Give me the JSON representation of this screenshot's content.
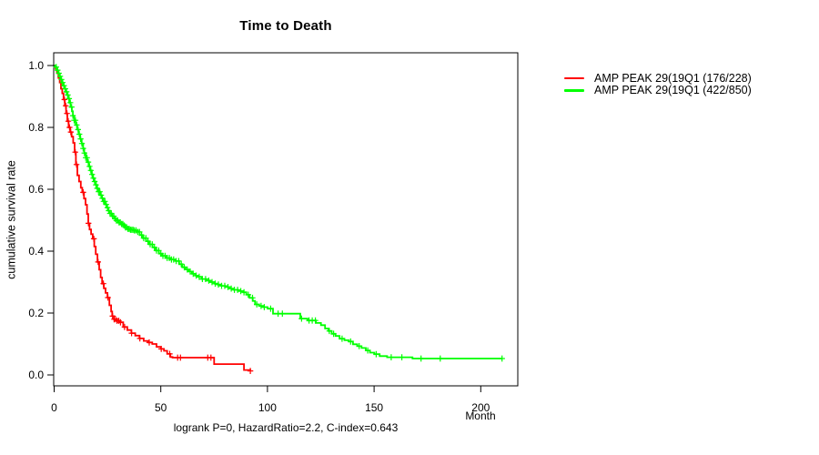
{
  "figure": {
    "title": "Time to Death",
    "caption": "logrank P=0, HazardRatio=2.2, C-index=0.643"
  },
  "legend": {
    "items": [
      {
        "label": "AMP PEAK 29(19Q1 (176/228)",
        "color": "#ff0000"
      },
      {
        "label": "AMP PEAK 29(19Q1 (422/850)",
        "color": "#00ff00"
      }
    ]
  },
  "chart_data": {
    "type": "line",
    "subtype": "kaplan-meier-step-curves",
    "title": "Time to Death",
    "xlabel": "Month",
    "ylabel": "cumulative survival rate",
    "xlim": [
      0,
      218
    ],
    "ylim": [
      0,
      1
    ],
    "grid": false,
    "legend_position": "right-outside",
    "x_ticks": [
      0,
      50,
      100,
      150,
      200
    ],
    "y_ticks": [
      "1.0",
      "0.8",
      "0.6",
      "0.4",
      "0.2",
      "0.0"
    ],
    "y_tick_values": [
      1.0,
      0.8,
      0.6,
      0.4,
      0.2,
      0.0
    ],
    "stats": {
      "logrank_p": "0",
      "hazard_ratio": "2.2",
      "c_index": "0.643"
    },
    "series": [
      {
        "name": "AMP PEAK 29(19Q1 (176/228)",
        "color": "#ff0000",
        "points": [
          [
            0,
            1.0
          ],
          [
            0.7,
            0.99
          ],
          [
            1.3,
            0.975
          ],
          [
            2,
            0.96
          ],
          [
            2.6,
            0.945
          ],
          [
            3.2,
            0.925
          ],
          [
            3.8,
            0.91
          ],
          [
            4.4,
            0.89
          ],
          [
            5,
            0.87
          ],
          [
            5.6,
            0.845
          ],
          [
            6.2,
            0.82
          ],
          [
            6.8,
            0.8
          ],
          [
            7.5,
            0.785
          ],
          [
            8.2,
            0.77
          ],
          [
            8.9,
            0.75
          ],
          [
            9.6,
            0.72
          ],
          [
            10.2,
            0.68
          ],
          [
            10.9,
            0.645
          ],
          [
            11.7,
            0.625
          ],
          [
            12.5,
            0.605
          ],
          [
            13.2,
            0.59
          ],
          [
            14,
            0.57
          ],
          [
            14.7,
            0.55
          ],
          [
            15.4,
            0.52
          ],
          [
            16,
            0.49
          ],
          [
            16.6,
            0.47
          ],
          [
            17.3,
            0.455
          ],
          [
            18.1,
            0.44
          ],
          [
            18.8,
            0.415
          ],
          [
            19.5,
            0.39
          ],
          [
            20.3,
            0.365
          ],
          [
            21.1,
            0.34
          ],
          [
            21.8,
            0.315
          ],
          [
            22.5,
            0.295
          ],
          [
            23.3,
            0.28
          ],
          [
            24.1,
            0.265
          ],
          [
            25,
            0.25
          ],
          [
            25.9,
            0.225
          ],
          [
            26.7,
            0.205
          ],
          [
            27.2,
            0.19
          ],
          [
            28,
            0.18
          ],
          [
            29.3,
            0.175
          ],
          [
            30.6,
            0.17
          ],
          [
            32.4,
            0.155
          ],
          [
            34.3,
            0.145
          ],
          [
            36.2,
            0.135
          ],
          [
            38,
            0.127
          ],
          [
            40,
            0.118
          ],
          [
            42,
            0.11
          ],
          [
            44,
            0.105
          ],
          [
            46,
            0.1
          ],
          [
            48,
            0.091
          ],
          [
            50,
            0.084
          ],
          [
            51.5,
            0.078
          ],
          [
            53,
            0.068
          ],
          [
            54.5,
            0.058
          ],
          [
            55.5,
            0.056
          ],
          [
            75,
            0.035
          ],
          [
            89,
            0.016
          ],
          [
            92,
            0.013
          ]
        ],
        "censor_times": [
          4.8,
          5.4,
          6,
          6.6,
          7.2,
          7.8,
          9.9,
          10.5,
          13.6,
          16.1,
          18.6,
          20.6,
          23.1,
          25.2,
          27.4,
          28.1,
          28.8,
          29.5,
          30.3,
          31.1,
          33,
          36.3,
          40.2,
          44.6,
          50.2,
          54.2,
          57.9,
          59.2,
          72,
          73.5,
          92
        ]
      },
      {
        "name": "AMP PEAK 29(19Q1 (422/850)",
        "color": "#00ff00",
        "points": [
          [
            0,
            1.0
          ],
          [
            0.5,
            0.995
          ],
          [
            1.1,
            0.985
          ],
          [
            1.7,
            0.975
          ],
          [
            2.3,
            0.965
          ],
          [
            2.9,
            0.955
          ],
          [
            3.5,
            0.945
          ],
          [
            4.1,
            0.935
          ],
          [
            4.7,
            0.925
          ],
          [
            5.3,
            0.915
          ],
          [
            5.9,
            0.905
          ],
          [
            6.5,
            0.893
          ],
          [
            7.1,
            0.88
          ],
          [
            7.7,
            0.866
          ],
          [
            8.3,
            0.852
          ],
          [
            8.8,
            0.838
          ],
          [
            9.4,
            0.823
          ],
          [
            10.1,
            0.808
          ],
          [
            10.8,
            0.793
          ],
          [
            11.5,
            0.778
          ],
          [
            12.2,
            0.763
          ],
          [
            12.9,
            0.748
          ],
          [
            13.6,
            0.732
          ],
          [
            14.1,
            0.717
          ],
          [
            14.8,
            0.702
          ],
          [
            15.5,
            0.688
          ],
          [
            16.2,
            0.674
          ],
          [
            16.9,
            0.661
          ],
          [
            17.6,
            0.648
          ],
          [
            18.2,
            0.636
          ],
          [
            18.9,
            0.625
          ],
          [
            19.6,
            0.614
          ],
          [
            20.2,
            0.603
          ],
          [
            20.8,
            0.592
          ],
          [
            21.6,
            0.581
          ],
          [
            22.4,
            0.571
          ],
          [
            23.1,
            0.561
          ],
          [
            23.9,
            0.551
          ],
          [
            24.6,
            0.541
          ],
          [
            25.3,
            0.531
          ],
          [
            26.1,
            0.522
          ],
          [
            27.1,
            0.513
          ],
          [
            28.1,
            0.505
          ],
          [
            29.1,
            0.499
          ],
          [
            30.1,
            0.493
          ],
          [
            31.2,
            0.488
          ],
          [
            32.3,
            0.483
          ],
          [
            33.4,
            0.477
          ],
          [
            34.5,
            0.472
          ],
          [
            35.7,
            0.469
          ],
          [
            37.1,
            0.467
          ],
          [
            38.7,
            0.462
          ],
          [
            40.1,
            0.452
          ],
          [
            41.6,
            0.442
          ],
          [
            43.1,
            0.432
          ],
          [
            44.6,
            0.422
          ],
          [
            46.1,
            0.412
          ],
          [
            47.6,
            0.402
          ],
          [
            49.1,
            0.392
          ],
          [
            50.6,
            0.385
          ],
          [
            52.7,
            0.378
          ],
          [
            54.6,
            0.373
          ],
          [
            57,
            0.368
          ],
          [
            58.6,
            0.358
          ],
          [
            60.1,
            0.348
          ],
          [
            61.6,
            0.341
          ],
          [
            63.1,
            0.334
          ],
          [
            64.6,
            0.327
          ],
          [
            66.1,
            0.321
          ],
          [
            67.3,
            0.317
          ],
          [
            69.1,
            0.31
          ],
          [
            71.1,
            0.305
          ],
          [
            73.1,
            0.3
          ],
          [
            75.1,
            0.295
          ],
          [
            76.6,
            0.292
          ],
          [
            78.4,
            0.288
          ],
          [
            80.1,
            0.284
          ],
          [
            82.1,
            0.279
          ],
          [
            84.1,
            0.275
          ],
          [
            86.1,
            0.271
          ],
          [
            88.6,
            0.267
          ],
          [
            90.1,
            0.259
          ],
          [
            91.6,
            0.249
          ],
          [
            93.1,
            0.239
          ],
          [
            94.2,
            0.228
          ],
          [
            96.1,
            0.223
          ],
          [
            98.1,
            0.219
          ],
          [
            100.1,
            0.214
          ],
          [
            102.6,
            0.198
          ],
          [
            115.4,
            0.182
          ],
          [
            118.8,
            0.176
          ],
          [
            122.7,
            0.168
          ],
          [
            125.1,
            0.161
          ],
          [
            127,
            0.15
          ],
          [
            128.6,
            0.142
          ],
          [
            130.1,
            0.133
          ],
          [
            131.9,
            0.126
          ],
          [
            133.8,
            0.117
          ],
          [
            136.1,
            0.112
          ],
          [
            138.1,
            0.108
          ],
          [
            140.1,
            0.099
          ],
          [
            142.1,
            0.093
          ],
          [
            144.1,
            0.087
          ],
          [
            146.1,
            0.079
          ],
          [
            148.1,
            0.072
          ],
          [
            150.1,
            0.067
          ],
          [
            152.6,
            0.061
          ],
          [
            156.1,
            0.057
          ],
          [
            168,
            0.053
          ],
          [
            210,
            0.053
          ]
        ],
        "censor_times": [
          1,
          1.6,
          2.2,
          2.8,
          3.4,
          4,
          4.6,
          5.2,
          5.8,
          6.4,
          7,
          7.6,
          8.2,
          8.8,
          9.4,
          10,
          10.6,
          11.2,
          11.8,
          12.4,
          13,
          13.6,
          14.2,
          14.8,
          15.4,
          16,
          16.6,
          17.2,
          17.8,
          18.4,
          19,
          19.6,
          20.2,
          20.8,
          21.4,
          22,
          22.6,
          23.2,
          23.8,
          24.4,
          25,
          25.6,
          26.2,
          26.8,
          27.4,
          28,
          28.6,
          29.2,
          29.8,
          30.4,
          31,
          31.6,
          32.2,
          32.8,
          33.4,
          34,
          34.6,
          35.2,
          35.8,
          36.4,
          37,
          37.6,
          38.4,
          39.2,
          40,
          41,
          42,
          43,
          44,
          45,
          46,
          47,
          48,
          49,
          50,
          51,
          52,
          53,
          54,
          55,
          56,
          57.2,
          58.4,
          59.6,
          61,
          62.4,
          63.8,
          65.2,
          66.6,
          68,
          69.5,
          71,
          72.5,
          74,
          75.5,
          77,
          78.5,
          80,
          81.5,
          83,
          84.5,
          86,
          87.5,
          89,
          91,
          93,
          95,
          97,
          98.5,
          101.5,
          105,
          107,
          116,
          119.5,
          121,
          122.5,
          129,
          131,
          135,
          139,
          143,
          147,
          151,
          158,
          163,
          172,
          181,
          210
        ]
      }
    ]
  }
}
